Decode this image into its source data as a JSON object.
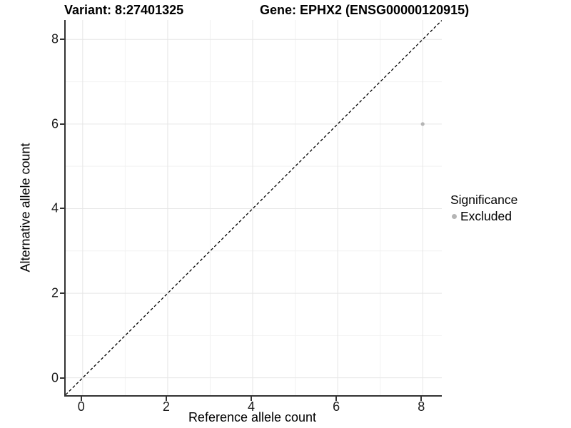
{
  "header": {
    "variant_title": "Variant: 8:27401325",
    "gene_title": "Gene: EPHX2 (ENSG00000120915)"
  },
  "chart_data": {
    "type": "scatter",
    "xlabel": "Reference allele count",
    "ylabel": "Alternative allele count",
    "x_ticks": [
      0,
      2,
      4,
      6,
      8
    ],
    "y_ticks": [
      0,
      2,
      4,
      6,
      8
    ],
    "minor_ticks_x": [
      1,
      3,
      5,
      7
    ],
    "minor_ticks_y": [
      1,
      3,
      5,
      7
    ],
    "xlim": [
      -0.4,
      8.45
    ],
    "ylim": [
      -0.41,
      8.46
    ],
    "grid": "on",
    "points": [
      {
        "x": 8,
        "y": 6,
        "series": "Excluded"
      }
    ],
    "identity_line": {
      "slope": 1,
      "intercept": 0,
      "style": "dashed"
    },
    "legend": {
      "title": "Significance",
      "position": "right",
      "items": [
        {
          "label": "Excluded",
          "color": "#b5b5b5"
        }
      ]
    }
  },
  "colors": {
    "point": "#b5b5b5",
    "grid_major": "#e6e6e6",
    "grid_minor": "#f2f2f2",
    "axis_line": "#333333",
    "tick_text": "#1a1a1a",
    "line": "#000000",
    "background": "#ffffff"
  }
}
